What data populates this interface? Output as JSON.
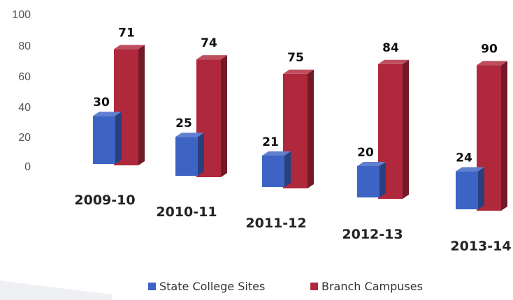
{
  "chart_data": {
    "type": "bar",
    "categories": [
      "2009-10",
      "2010-11",
      "2011-12",
      "2012-13",
      "2013-14"
    ],
    "series": [
      {
        "name": "State College Sites",
        "values": [
          30,
          25,
          21,
          20,
          24
        ],
        "color": "#3d63c4"
      },
      {
        "name": "Branch Campuses",
        "values": [
          71,
          74,
          75,
          84,
          90
        ],
        "color": "#b0283c"
      }
    ],
    "yticks": [
      "100",
      "80",
      "60",
      "40",
      "20",
      "0"
    ],
    "ylim": [
      0,
      100
    ],
    "legend_position": "bottom",
    "grid": false,
    "style": "3d-perspective-columns"
  }
}
